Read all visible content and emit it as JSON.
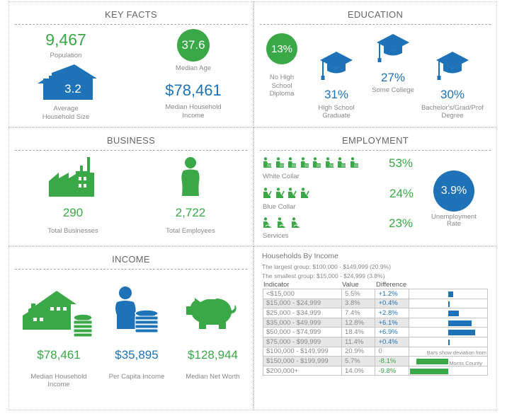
{
  "colors": {
    "green": "#3aa847",
    "blue": "#1d72b8",
    "text": "#7a7a7a"
  },
  "key_facts": {
    "title": "KEY FACTS",
    "population": {
      "value": "9,467",
      "label": "Population"
    },
    "median_age": {
      "value": "37.6",
      "label": "Median Age"
    },
    "household_size": {
      "value": "3.2",
      "label_line1": "Average",
      "label_line2": "Household Size",
      "icon": "house-icon"
    },
    "median_household_income": {
      "value": "$78,461",
      "label_line1": "Median Household",
      "label_line2": "Income"
    }
  },
  "education": {
    "title": "EDUCATION",
    "items": [
      {
        "value": "13%",
        "label_lines": [
          "No High",
          "School",
          "Diploma"
        ],
        "icon": "circle"
      },
      {
        "value": "31%",
        "label_lines": [
          "High School",
          "Graduate"
        ],
        "icon": "graduation-cap-icon"
      },
      {
        "value": "27%",
        "label_lines": [
          "Some College"
        ],
        "icon": "graduation-cap-icon"
      },
      {
        "value": "30%",
        "label_lines": [
          "Bachelor's/Grad/Prof",
          "Degree"
        ],
        "icon": "graduation-cap-icon"
      }
    ]
  },
  "business": {
    "title": "BUSINESS",
    "total_businesses": {
      "value": "290",
      "label": "Total Businesses",
      "icon": "factory-icon"
    },
    "total_employees": {
      "value": "2,722",
      "label": "Total Employees",
      "icon": "person-icon"
    }
  },
  "employment": {
    "title": "EMPLOYMENT",
    "rows": [
      {
        "label": "White Collar",
        "value": "53%",
        "icon_count": 8,
        "icon": "white-collar-worker-icon"
      },
      {
        "label": "Blue Collar",
        "value": "24%",
        "icon_count": 4,
        "icon": "blue-collar-worker-icon"
      },
      {
        "label": "Services",
        "value": "23%",
        "icon_count": 3,
        "icon": "service-worker-icon"
      }
    ],
    "unemployment": {
      "value": "3.9%",
      "label_line1": "Unemployment",
      "label_line2": "Rate"
    }
  },
  "income": {
    "title": "INCOME",
    "items": [
      {
        "value": "$78,461",
        "label_lines": [
          "Median Household",
          "Income"
        ],
        "icon": "house-coins-icon",
        "color": "green"
      },
      {
        "value": "$35,895",
        "label_lines": [
          "Per Capita Income"
        ],
        "icon": "person-coins-icon",
        "color": "blue"
      },
      {
        "value": "$128,944",
        "label_lines": [
          "Median Net Worth"
        ],
        "icon": "piggy-bank-icon",
        "color": "green"
      }
    ]
  },
  "households_by_income": {
    "title": "Households By Income",
    "largest": "The largest group: $100,000 - $149,999 (20.9%)",
    "smallest": "The smallest group: $15,000 - $24,999 (3.8%)",
    "headers": [
      "Indicator",
      "Value",
      "Difference"
    ],
    "rows": [
      {
        "indicator": "<$15,000",
        "value": "5.5%",
        "difference": "+1.2%",
        "diff": 1.2
      },
      {
        "indicator": "$15,000 - $24,999",
        "value": "3.8%",
        "difference": "+0.4%",
        "diff": 0.4
      },
      {
        "indicator": "$25,000 - $34,999",
        "value": "7.4%",
        "difference": "+2.8%",
        "diff": 2.8
      },
      {
        "indicator": "$35,000 - $49,999",
        "value": "12.8%",
        "difference": "+6.1%",
        "diff": 6.1
      },
      {
        "indicator": "$50,000 - $74,999",
        "value": "18.4%",
        "difference": "+6.9%",
        "diff": 6.9
      },
      {
        "indicator": "$75,000 - $99,999",
        "value": "11.4%",
        "difference": "+0.4%",
        "diff": 0.4
      },
      {
        "indicator": "$100,000 - $149,999",
        "value": "20.9%",
        "difference": "0",
        "diff": 0
      },
      {
        "indicator": "$150,000 - $199,999",
        "value": "5.7%",
        "difference": "-8.1%",
        "diff": -8.1
      },
      {
        "indicator": "$200,000+",
        "value": "14.0%",
        "difference": "-9.8%",
        "diff": -9.8
      }
    ],
    "footnote_line1": "Bars show deviation from",
    "footnote_line2": "Morris County"
  }
}
